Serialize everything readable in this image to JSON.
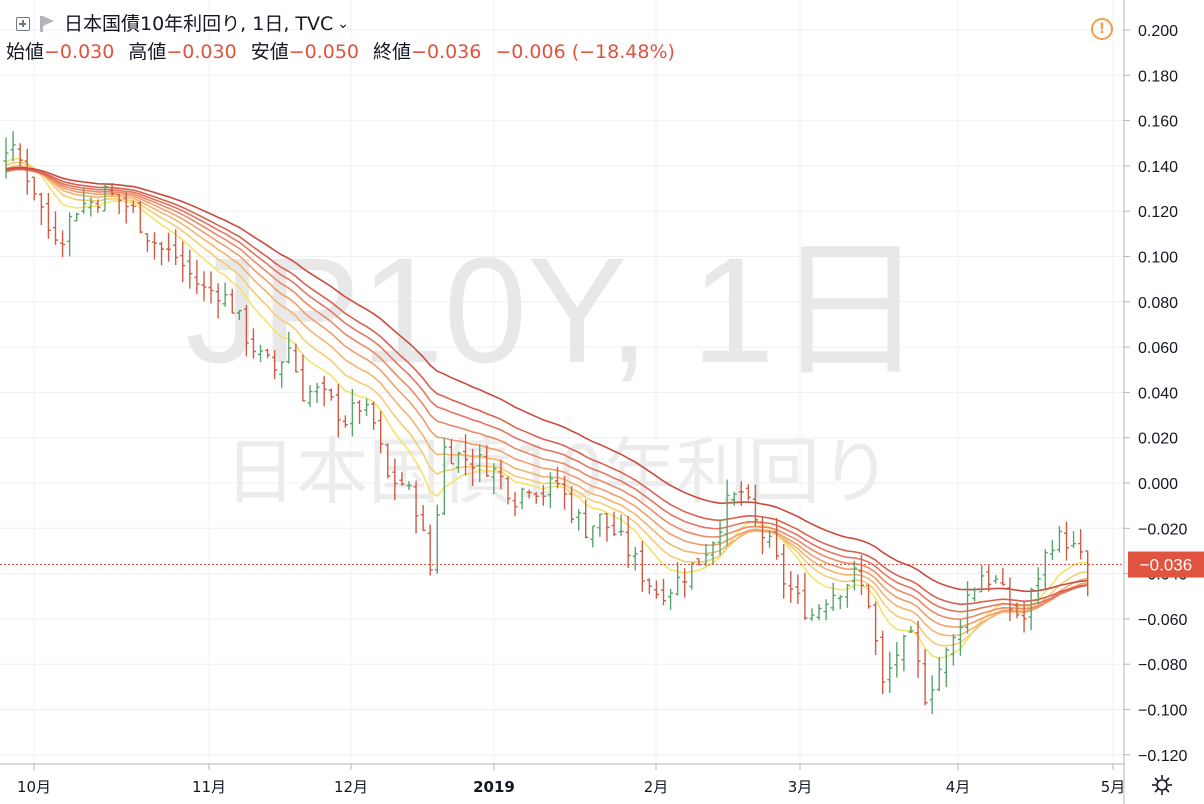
{
  "header": {
    "title": "日本国債10年利回り, 1日, TVC",
    "ohlc": [
      {
        "label": "始値",
        "value": "−0.030"
      },
      {
        "label": "高値",
        "value": "−0.030"
      },
      {
        "label": "安値",
        "value": "−0.050"
      },
      {
        "label": "終値",
        "value": "−0.036"
      }
    ],
    "change": "−0.006 (−18.48%)"
  },
  "watermark": {
    "line1": "JP10Y, 1日",
    "line2": "日本国債10年利回り"
  },
  "price_tag": "−0.036",
  "colors": {
    "up": "#5aa36b",
    "down": "#cf5b45",
    "ma_ribbon": [
      "#f4e36a",
      "#f5cc73",
      "#f2b46f",
      "#f09e6b",
      "#ec8a66",
      "#e57460",
      "#da6050",
      "#c94b3e"
    ],
    "accent": "#e0533f",
    "alert": "#f0a04b"
  },
  "icons": [
    "plus-square-icon",
    "flag-icon",
    "chevron-down-icon",
    "alert-icon",
    "settings-gear-icon"
  ],
  "chart_data": {
    "type": "ohlc",
    "title": "日本国債10年利回り",
    "xlabel": "",
    "ylabel": "",
    "ylim": [
      -0.125,
      0.205
    ],
    "y_ticks": [
      "0.200",
      "0.180",
      "0.160",
      "0.140",
      "0.120",
      "0.100",
      "0.080",
      "0.060",
      "0.040",
      "0.020",
      "0.000",
      "−0.020",
      "−0.040",
      "−0.060",
      "−0.080",
      "−0.100",
      "−0.120"
    ],
    "x_ticks": [
      "10月",
      "11月",
      "12月",
      "2019",
      "2月",
      "3月",
      "4月",
      "5月"
    ],
    "grid": true,
    "current_value": -0.036,
    "anchors": [
      [
        0.127,
        0.127
      ],
      [
        0.125,
        0.125
      ],
      [
        0.138,
        0.138
      ],
      [
        0.148,
        0.148
      ],
      [
        0.152,
        0.151
      ],
      [
        0.148,
        0.148
      ],
      [
        0.147,
        0.148
      ],
      [
        0.14,
        0.139
      ],
      [
        0.139,
        0.139
      ],
      [
        0.148,
        0.148
      ],
      [
        0.142,
        0.142
      ],
      [
        0.13,
        0.13
      ],
      [
        0.112,
        0.112
      ],
      [
        0.11,
        0.11
      ],
      [
        0.122,
        0.122
      ],
      [
        0.124,
        0.124
      ],
      [
        0.128,
        0.128
      ],
      [
        0.125,
        0.125
      ],
      [
        0.12,
        0.12
      ],
      [
        0.11,
        0.11
      ],
      [
        0.103,
        0.103
      ],
      [
        0.1,
        0.1
      ],
      [
        0.092,
        0.092
      ],
      [
        0.085,
        0.085
      ],
      [
        0.085,
        0.085
      ],
      [
        0.078,
        0.078
      ],
      [
        0.065,
        0.065
      ],
      [
        0.055,
        0.055
      ],
      [
        0.05,
        0.05
      ],
      [
        0.06,
        0.06
      ],
      [
        0.04,
        0.04
      ],
      [
        0.04,
        0.04
      ],
      [
        0.035,
        0.035
      ],
      [
        0.028,
        0.028
      ],
      [
        0.034,
        0.034
      ],
      [
        0.026,
        0.026
      ],
      [
        0.002,
        0.002
      ],
      [
        0.0,
        0.0
      ],
      [
        -0.01,
        -0.01
      ],
      [
        -0.038,
        -0.038
      ],
      [
        0.015,
        0.015
      ],
      [
        0.012,
        0.012
      ],
      [
        0.01,
        0.01
      ],
      [
        0.008,
        0.008
      ],
      [
        0.002,
        0.002
      ],
      [
        -0.006,
        -0.006
      ],
      [
        0.0,
        0.0
      ],
      [
        -0.004,
        -0.004
      ],
      [
        0.0,
        0.0
      ],
      [
        -0.012,
        -0.012
      ],
      [
        -0.02,
        -0.02
      ],
      [
        -0.016,
        -0.016
      ],
      [
        -0.022,
        -0.022
      ],
      [
        -0.03,
        -0.03
      ],
      [
        -0.04,
        -0.04
      ],
      [
        -0.048,
        -0.048
      ],
      [
        -0.046,
        -0.046
      ],
      [
        -0.04,
        -0.04
      ],
      [
        -0.034,
        -0.034
      ],
      [
        -0.024,
        -0.024
      ],
      [
        -0.01,
        -0.01
      ],
      [
        -0.004,
        -0.004
      ],
      [
        -0.018,
        -0.018
      ],
      [
        -0.028,
        -0.028
      ],
      [
        -0.043,
        -0.043
      ],
      [
        -0.052,
        -0.052
      ],
      [
        -0.058,
        -0.058
      ],
      [
        -0.05,
        -0.05
      ],
      [
        -0.046,
        -0.046
      ],
      [
        -0.041,
        -0.041
      ],
      [
        -0.052,
        -0.052
      ],
      [
        -0.09,
        -0.09
      ],
      [
        -0.075,
        -0.075
      ],
      [
        -0.07,
        -0.07
      ],
      [
        -0.093,
        -0.093
      ],
      [
        -0.082,
        -0.082
      ],
      [
        -0.07,
        -0.07
      ],
      [
        -0.05,
        -0.05
      ],
      [
        -0.04,
        -0.04
      ],
      [
        -0.044,
        -0.044
      ],
      [
        -0.055,
        -0.055
      ],
      [
        -0.06,
        -0.06
      ],
      [
        -0.04,
        -0.04
      ],
      [
        -0.025,
        -0.025
      ],
      [
        -0.025,
        -0.025
      ],
      [
        -0.034,
        -0.034
      ]
    ]
  }
}
